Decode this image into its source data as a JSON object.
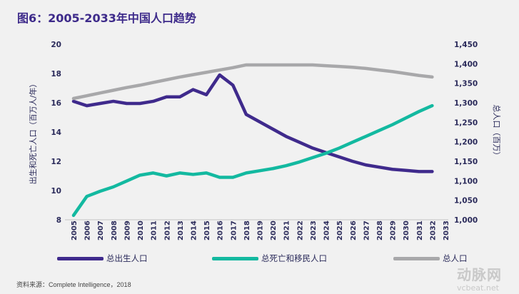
{
  "title": "图6：2005-2033年中国人口趋势",
  "source": "资料来源：Complete Intelligence，2018",
  "watermark": {
    "mark": "动脉网",
    "url_text": "vcbeat.net"
  },
  "chart_data": {
    "type": "line",
    "title": "图6：2005-2033年中国人口趋势",
    "x": [
      2005,
      2006,
      2007,
      2008,
      2009,
      2010,
      2011,
      2012,
      2013,
      2014,
      2015,
      2016,
      2017,
      2018,
      2019,
      2020,
      2021,
      2022,
      2023,
      2024,
      2025,
      2026,
      2027,
      2028,
      2029,
      2030,
      2031,
      2032
    ],
    "x_ticks": [
      "2005",
      "2006",
      "2007",
      "2008",
      "2009",
      "2010",
      "2011",
      "2012",
      "2013",
      "2014",
      "2015",
      "2016",
      "2017",
      "2018",
      "2019",
      "2020",
      "2021",
      "2022",
      "2023",
      "2024",
      "2025",
      "2026",
      "2027",
      "2028",
      "2029",
      "2030",
      "2031",
      "2032",
      "2033"
    ],
    "ylabel_left": "出生和死亡人口（百万人/年）",
    "ylabel_right": "总人口（百万）",
    "ylim_left": [
      8,
      20
    ],
    "yticks_left": [
      "8",
      "10",
      "12",
      "14",
      "16",
      "18",
      "20"
    ],
    "ylim_right": [
      1000,
      1450
    ],
    "yticks_right": [
      "1,000",
      "1,050",
      "1,100",
      "1,150",
      "1,200",
      "1,250",
      "1,300",
      "1,350",
      "1,400",
      "1,450"
    ],
    "grid": false,
    "legend_position": "bottom",
    "series": [
      {
        "name": "总出生人口",
        "axis": "left",
        "color": "#3f2a8c",
        "values": [
          16.1,
          15.8,
          15.95,
          16.1,
          15.95,
          15.95,
          16.1,
          16.4,
          16.4,
          16.9,
          16.55,
          17.9,
          17.2,
          15.2,
          14.7,
          14.2,
          13.7,
          13.3,
          12.9,
          12.6,
          12.3,
          12.0,
          11.75,
          11.6,
          11.45,
          11.38,
          11.3,
          11.3
        ]
      },
      {
        "name": "总死亡和移民人口",
        "axis": "left",
        "color": "#13b9a0",
        "values": [
          8.3,
          9.6,
          9.95,
          10.25,
          10.65,
          11.05,
          11.2,
          11.0,
          11.2,
          11.1,
          11.2,
          10.9,
          10.9,
          11.2,
          11.35,
          11.5,
          11.7,
          11.95,
          12.25,
          12.55,
          12.9,
          13.3,
          13.7,
          14.1,
          14.5,
          14.95,
          15.4,
          15.8
        ]
      },
      {
        "name": "总人口",
        "axis": "right",
        "color": "#a8a8aa",
        "values": [
          1311,
          1318,
          1325,
          1332,
          1339,
          1345,
          1352,
          1359,
          1366,
          1372,
          1378,
          1384,
          1390,
          1397,
          1397,
          1397,
          1397,
          1397,
          1397,
          1395,
          1393,
          1391,
          1388,
          1384,
          1380,
          1375,
          1370,
          1366
        ]
      }
    ]
  }
}
